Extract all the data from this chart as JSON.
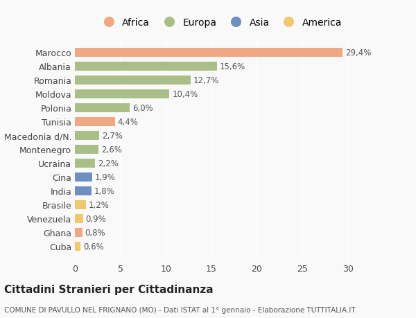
{
  "countries": [
    "Cuba",
    "Ghana",
    "Venezuela",
    "Brasile",
    "India",
    "Cina",
    "Ucraina",
    "Montenegro",
    "Macedonia d/N.",
    "Tunisia",
    "Polonia",
    "Moldova",
    "Romania",
    "Albania",
    "Marocco"
  ],
  "values": [
    0.6,
    0.8,
    0.9,
    1.2,
    1.8,
    1.9,
    2.2,
    2.6,
    2.7,
    4.4,
    6.0,
    10.4,
    12.7,
    15.6,
    29.4
  ],
  "labels": [
    "0,6%",
    "0,8%",
    "0,9%",
    "1,2%",
    "1,8%",
    "1,9%",
    "2,2%",
    "2,6%",
    "2,7%",
    "4,4%",
    "6,0%",
    "10,4%",
    "12,7%",
    "15,6%",
    "29,4%"
  ],
  "continents": [
    "America",
    "Africa",
    "America",
    "America",
    "Asia",
    "Asia",
    "Europa",
    "Europa",
    "Europa",
    "Africa",
    "Europa",
    "Europa",
    "Europa",
    "Europa",
    "Africa"
  ],
  "colors": {
    "Africa": "#F0A884",
    "Europa": "#AABF88",
    "Asia": "#6F8FC0",
    "America": "#F0C870"
  },
  "legend_order": [
    "Africa",
    "Europa",
    "Asia",
    "America"
  ],
  "title": "Cittadini Stranieri per Cittadinanza",
  "subtitle": "COMUNE DI PAVULLO NEL FRIGNANO (MO) - Dati ISTAT al 1° gennaio - Elaborazione TUTTITALIA.IT",
  "xlim": [
    0,
    32
  ],
  "background_color": "#f9f9f9",
  "plot_background": "#f9f9f9",
  "grid_color": "#ffffff",
  "tick_interval": 5
}
